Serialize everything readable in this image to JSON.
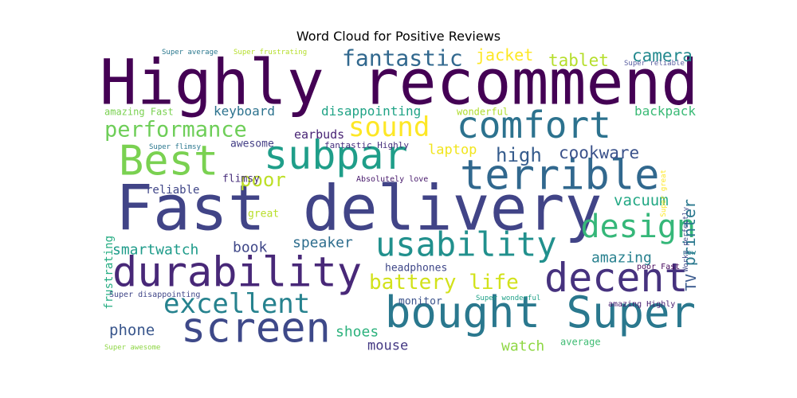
{
  "chart_data": {
    "type": "wordcloud",
    "title": "Word Cloud for Positive Reviews",
    "words": [
      {
        "text": "Highly recommend",
        "weight": 100,
        "color": "#440154",
        "rotation": 0
      },
      {
        "text": "Fast delivery",
        "weight": 98,
        "color": "#414487",
        "rotation": 0
      },
      {
        "text": "bought Super",
        "weight": 72,
        "color": "#2a788e",
        "rotation": 0
      },
      {
        "text": "durability",
        "weight": 70,
        "color": "#482878",
        "rotation": 0
      },
      {
        "text": "terrible",
        "weight": 70,
        "color": "#31688e",
        "rotation": 0
      },
      {
        "text": "screen",
        "weight": 68,
        "color": "#3e4989",
        "rotation": 0
      },
      {
        "text": "Best",
        "weight": 68,
        "color": "#7ad151",
        "rotation": 0
      },
      {
        "text": "subpar",
        "weight": 66,
        "color": "#1f9e89",
        "rotation": 0
      },
      {
        "text": "decent",
        "weight": 66,
        "color": "#46327e",
        "rotation": 0
      },
      {
        "text": "comfort",
        "weight": 60,
        "color": "#2c728e",
        "rotation": 0
      },
      {
        "text": "usability",
        "weight": 56,
        "color": "#21908d",
        "rotation": 0
      },
      {
        "text": "design",
        "weight": 52,
        "color": "#35b779",
        "rotation": 0
      },
      {
        "text": "excellent",
        "weight": 44,
        "color": "#26828e",
        "rotation": 0
      },
      {
        "text": "sound",
        "weight": 40,
        "color": "#fde725",
        "rotation": 0
      },
      {
        "text": "performance",
        "weight": 34,
        "color": "#6ece58",
        "rotation": 0
      },
      {
        "text": "fantastic",
        "weight": 32,
        "color": "#31688e",
        "rotation": 0
      },
      {
        "text": "battery life",
        "weight": 30,
        "color": "#d2e21b",
        "rotation": 0
      },
      {
        "text": "high",
        "weight": 27,
        "color": "#365c8d",
        "rotation": 0
      },
      {
        "text": "poor",
        "weight": 26,
        "color": "#bddf26",
        "rotation": 0
      },
      {
        "text": "cookware",
        "weight": 22,
        "color": "#3b528b",
        "rotation": 0
      },
      {
        "text": "camera",
        "weight": 22,
        "color": "#23898e",
        "rotation": 0
      },
      {
        "text": "vacuum",
        "weight": 22,
        "color": "#22a884",
        "rotation": 0
      },
      {
        "text": "jacket",
        "weight": 22,
        "color": "#fde725",
        "rotation": 0
      },
      {
        "text": "tablet",
        "weight": 22,
        "color": "#b5de2b",
        "rotation": 0
      },
      {
        "text": "printer",
        "weight": 22,
        "color": "#2a788e",
        "rotation": -90
      },
      {
        "text": "TV",
        "weight": 22,
        "color": "#38588c",
        "rotation": -90
      },
      {
        "text": "amazing",
        "weight": 20,
        "color": "#27808e",
        "rotation": 0
      },
      {
        "text": "smartwatch",
        "weight": 20,
        "color": "#1e9b8a",
        "rotation": 0
      },
      {
        "text": "speaker",
        "weight": 20,
        "color": "#2e6e8e",
        "rotation": 0
      },
      {
        "text": "book",
        "weight": 20,
        "color": "#3f4788",
        "rotation": 0
      },
      {
        "text": "phone",
        "weight": 20,
        "color": "#39568c",
        "rotation": 0
      },
      {
        "text": "shoes",
        "weight": 20,
        "color": "#2db27d",
        "rotation": 0
      },
      {
        "text": "watch",
        "weight": 20,
        "color": "#8fd744",
        "rotation": 0
      },
      {
        "text": "mouse",
        "weight": 18,
        "color": "#443983",
        "rotation": 0
      },
      {
        "text": "laptop",
        "weight": 18,
        "color": "#f1e51d",
        "rotation": 0
      },
      {
        "text": "keyboard",
        "weight": 17,
        "color": "#2c728e",
        "rotation": 0
      },
      {
        "text": "disappointing",
        "weight": 17,
        "color": "#20a386",
        "rotation": 0
      },
      {
        "text": "backpack",
        "weight": 17,
        "color": "#3aba76",
        "rotation": 0
      },
      {
        "text": "earbuds",
        "weight": 15,
        "color": "#482475",
        "rotation": 0
      },
      {
        "text": "headphones",
        "weight": 13,
        "color": "#3f4788",
        "rotation": 0
      },
      {
        "text": "monitor",
        "weight": 13,
        "color": "#3b528b",
        "rotation": 0
      },
      {
        "text": "awesome",
        "weight": 13,
        "color": "#433e85",
        "rotation": 0
      },
      {
        "text": "reliable",
        "weight": 14,
        "color": "#404688",
        "rotation": 0
      },
      {
        "text": "flimsy",
        "weight": 13,
        "color": "#472d7b",
        "rotation": 0
      },
      {
        "text": "frustrating",
        "weight": 14,
        "color": "#25ac82",
        "rotation": -90
      },
      {
        "text": "great",
        "weight": 13,
        "color": "#b8de29",
        "rotation": 0
      },
      {
        "text": "fantastic Highly",
        "weight": 11,
        "color": "#46307e",
        "rotation": 0
      },
      {
        "text": "Absolutely love",
        "weight": 10,
        "color": "#481a6c",
        "rotation": 0
      },
      {
        "text": "wonderful",
        "weight": 12,
        "color": "#b0dd2f",
        "rotation": 0
      },
      {
        "text": "amazing Fast",
        "weight": 12,
        "color": "#7ad151",
        "rotation": 0
      },
      {
        "text": "Super flimsy",
        "weight": 9,
        "color": "#2a778e",
        "rotation": 0
      },
      {
        "text": "Super average",
        "weight": 9,
        "color": "#2a788e",
        "rotation": 0
      },
      {
        "text": "Super frustrating",
        "weight": 9,
        "color": "#b5de2b",
        "rotation": 0
      },
      {
        "text": "Super reliable",
        "weight": 9,
        "color": "#5a5fa0",
        "rotation": 0
      },
      {
        "text": "Super disappointing",
        "weight": 10,
        "color": "#404688",
        "rotation": 0
      },
      {
        "text": "Super wonderful",
        "weight": 9,
        "color": "#1fa187",
        "rotation": 0
      },
      {
        "text": "Super awesome",
        "weight": 9,
        "color": "#8ed645",
        "rotation": 0
      },
      {
        "text": "amazing Highly",
        "weight": 10,
        "color": "#482173",
        "rotation": 0
      },
      {
        "text": "average",
        "weight": 12,
        "color": "#3fbc73",
        "rotation": 0
      },
      {
        "text": "poor Fast",
        "weight": 10,
        "color": "#46085c",
        "rotation": 0
      },
      {
        "text": "new",
        "weight": 9,
        "color": "#26828e",
        "rotation": 0
      },
      {
        "text": "Super great",
        "weight": 9,
        "color": "#fde725",
        "rotation": -90
      },
      {
        "text": "Works perfectly",
        "weight": 9,
        "color": "#3e4a89",
        "rotation": -90
      }
    ]
  }
}
